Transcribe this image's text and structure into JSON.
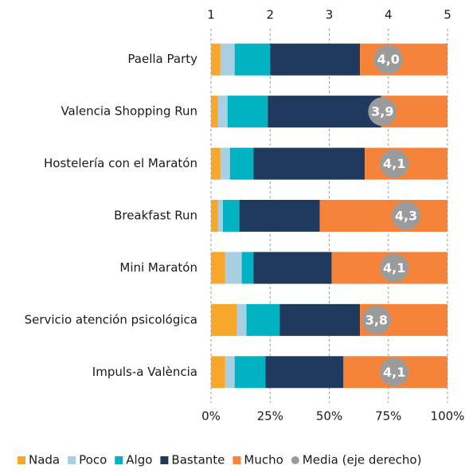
{
  "chart_data": {
    "type": "stacked_bar_horizontal",
    "categories": [
      "Paella Party",
      "Valencia Shopping Run",
      "Hostelería con el Maratón",
      "Breakfast Run",
      "Mini Maratón",
      "Servicio atención psicológica",
      "Impuls-a València"
    ],
    "series": [
      {
        "name": "Nada",
        "color": "#f7a72b",
        "values": [
          4,
          3,
          4,
          3,
          6,
          11,
          6
        ]
      },
      {
        "name": "Poco",
        "color": "#a9cfe2",
        "values": [
          6,
          4,
          4,
          2,
          7,
          4,
          4
        ]
      },
      {
        "name": "Algo",
        "color": "#00b2c2",
        "values": [
          15,
          17,
          10,
          7,
          5,
          14,
          13
        ]
      },
      {
        "name": "Bastante",
        "color": "#1f3a5c",
        "values": [
          38,
          48,
          47,
          34,
          33,
          34,
          33
        ]
      },
      {
        "name": "Mucho",
        "color": "#f5843a",
        "values": [
          37,
          28,
          35,
          54,
          49,
          37,
          44
        ]
      },
      {
        "name": "Media (eje derecho)",
        "color": "#9b9b9b",
        "axis": "x2",
        "values": [
          4.0,
          3.9,
          4.1,
          4.3,
          4.1,
          3.8,
          4.1
        ],
        "value_labels": [
          "4,0",
          "3,9",
          "4,1",
          "4,3",
          "4,1",
          "3,8",
          "4,1"
        ]
      }
    ],
    "xlim": [
      0,
      100
    ],
    "xticks": [
      {
        "value": 0,
        "label": "0%"
      },
      {
        "value": 25,
        "label": "25%"
      },
      {
        "value": 50,
        "label": "50%"
      },
      {
        "value": 75,
        "label": "75%"
      },
      {
        "value": 100,
        "label": "100%"
      }
    ],
    "x2lim": [
      1,
      5
    ],
    "x2ticks": [
      1,
      2,
      3,
      4,
      5
    ],
    "grid": true,
    "legend": "bottom"
  }
}
